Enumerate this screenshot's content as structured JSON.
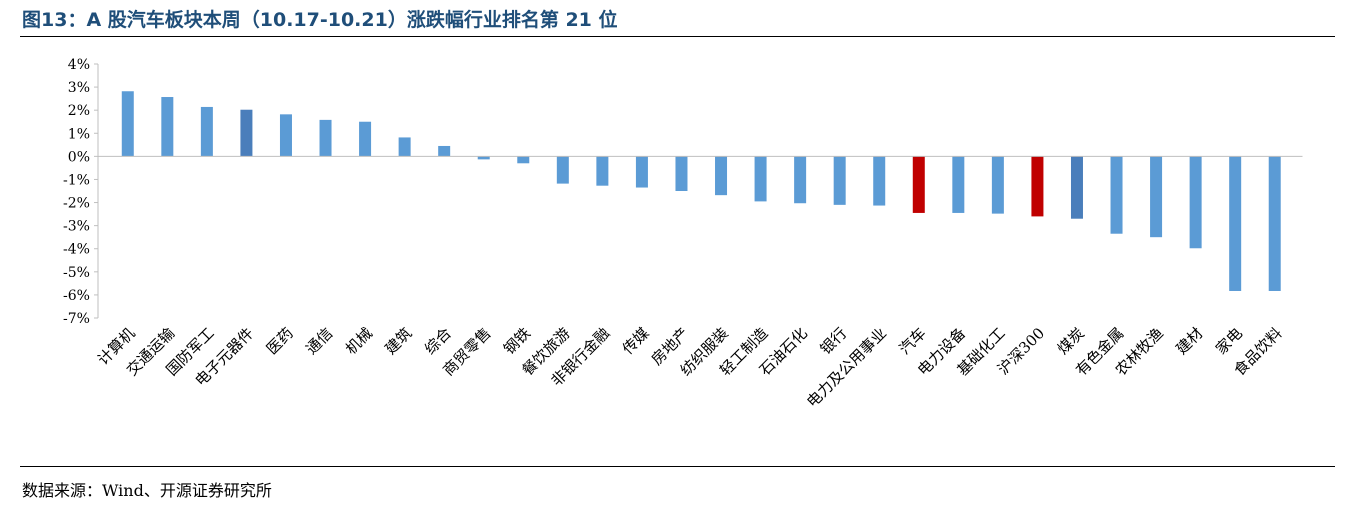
{
  "header": {
    "title": "图13：A 股汽车板块本周（10.17-10.21）涨跌幅行业排名第 21 位"
  },
  "footer": {
    "source": "数据来源：Wind、开源证券研究所"
  },
  "colors": {
    "default": "#5b9bd5",
    "dark": "#4a7ebb",
    "highlight": "#c00000",
    "axis": "#bfbfbf"
  },
  "chart_data": {
    "type": "bar",
    "title": "",
    "xlabel": "",
    "ylabel": "",
    "ylim": [
      -7,
      4
    ],
    "yticks": [
      4,
      3,
      2,
      1,
      0,
      -1,
      -2,
      -3,
      -4,
      -5,
      -6,
      -7
    ],
    "ytick_labels": [
      "4%",
      "3%",
      "2%",
      "1%",
      "0%",
      "-1%",
      "-2%",
      "-3%",
      "-4%",
      "-5%",
      "-6%",
      "-7%"
    ],
    "grid": false,
    "legend": "none",
    "categories": [
      "计算机",
      "交通运输",
      "国防军工",
      "电子元器件",
      "医药",
      "通信",
      "机械",
      "建筑",
      "综合",
      "商贸零售",
      "钢铁",
      "餐饮旅游",
      "非银行金融",
      "传媒",
      "房地产",
      "纺织服装",
      "轻工制造",
      "石油石化",
      "银行",
      "电力及公用事业",
      "汽车",
      "电力设备",
      "基础化工",
      "沪深300",
      "煤炭",
      "有色金属",
      "农林牧渔",
      "建材",
      "家电",
      "食品饮料"
    ],
    "values": [
      2.82,
      2.57,
      2.14,
      2.02,
      1.82,
      1.58,
      1.5,
      0.82,
      0.45,
      -0.13,
      -0.3,
      -1.18,
      -1.27,
      -1.35,
      -1.5,
      -1.68,
      -1.95,
      -2.03,
      -2.1,
      -2.13,
      -2.45,
      -2.45,
      -2.48,
      -2.6,
      -2.7,
      -3.35,
      -3.5,
      -3.98,
      -5.83,
      -5.83
    ],
    "bar_colors": [
      "default",
      "default",
      "default",
      "dark",
      "default",
      "default",
      "default",
      "default",
      "default",
      "default",
      "default",
      "default",
      "default",
      "default",
      "default",
      "default",
      "default",
      "default",
      "default",
      "default",
      "highlight",
      "default",
      "default",
      "highlight",
      "dark",
      "default",
      "default",
      "default",
      "default",
      "default"
    ]
  }
}
